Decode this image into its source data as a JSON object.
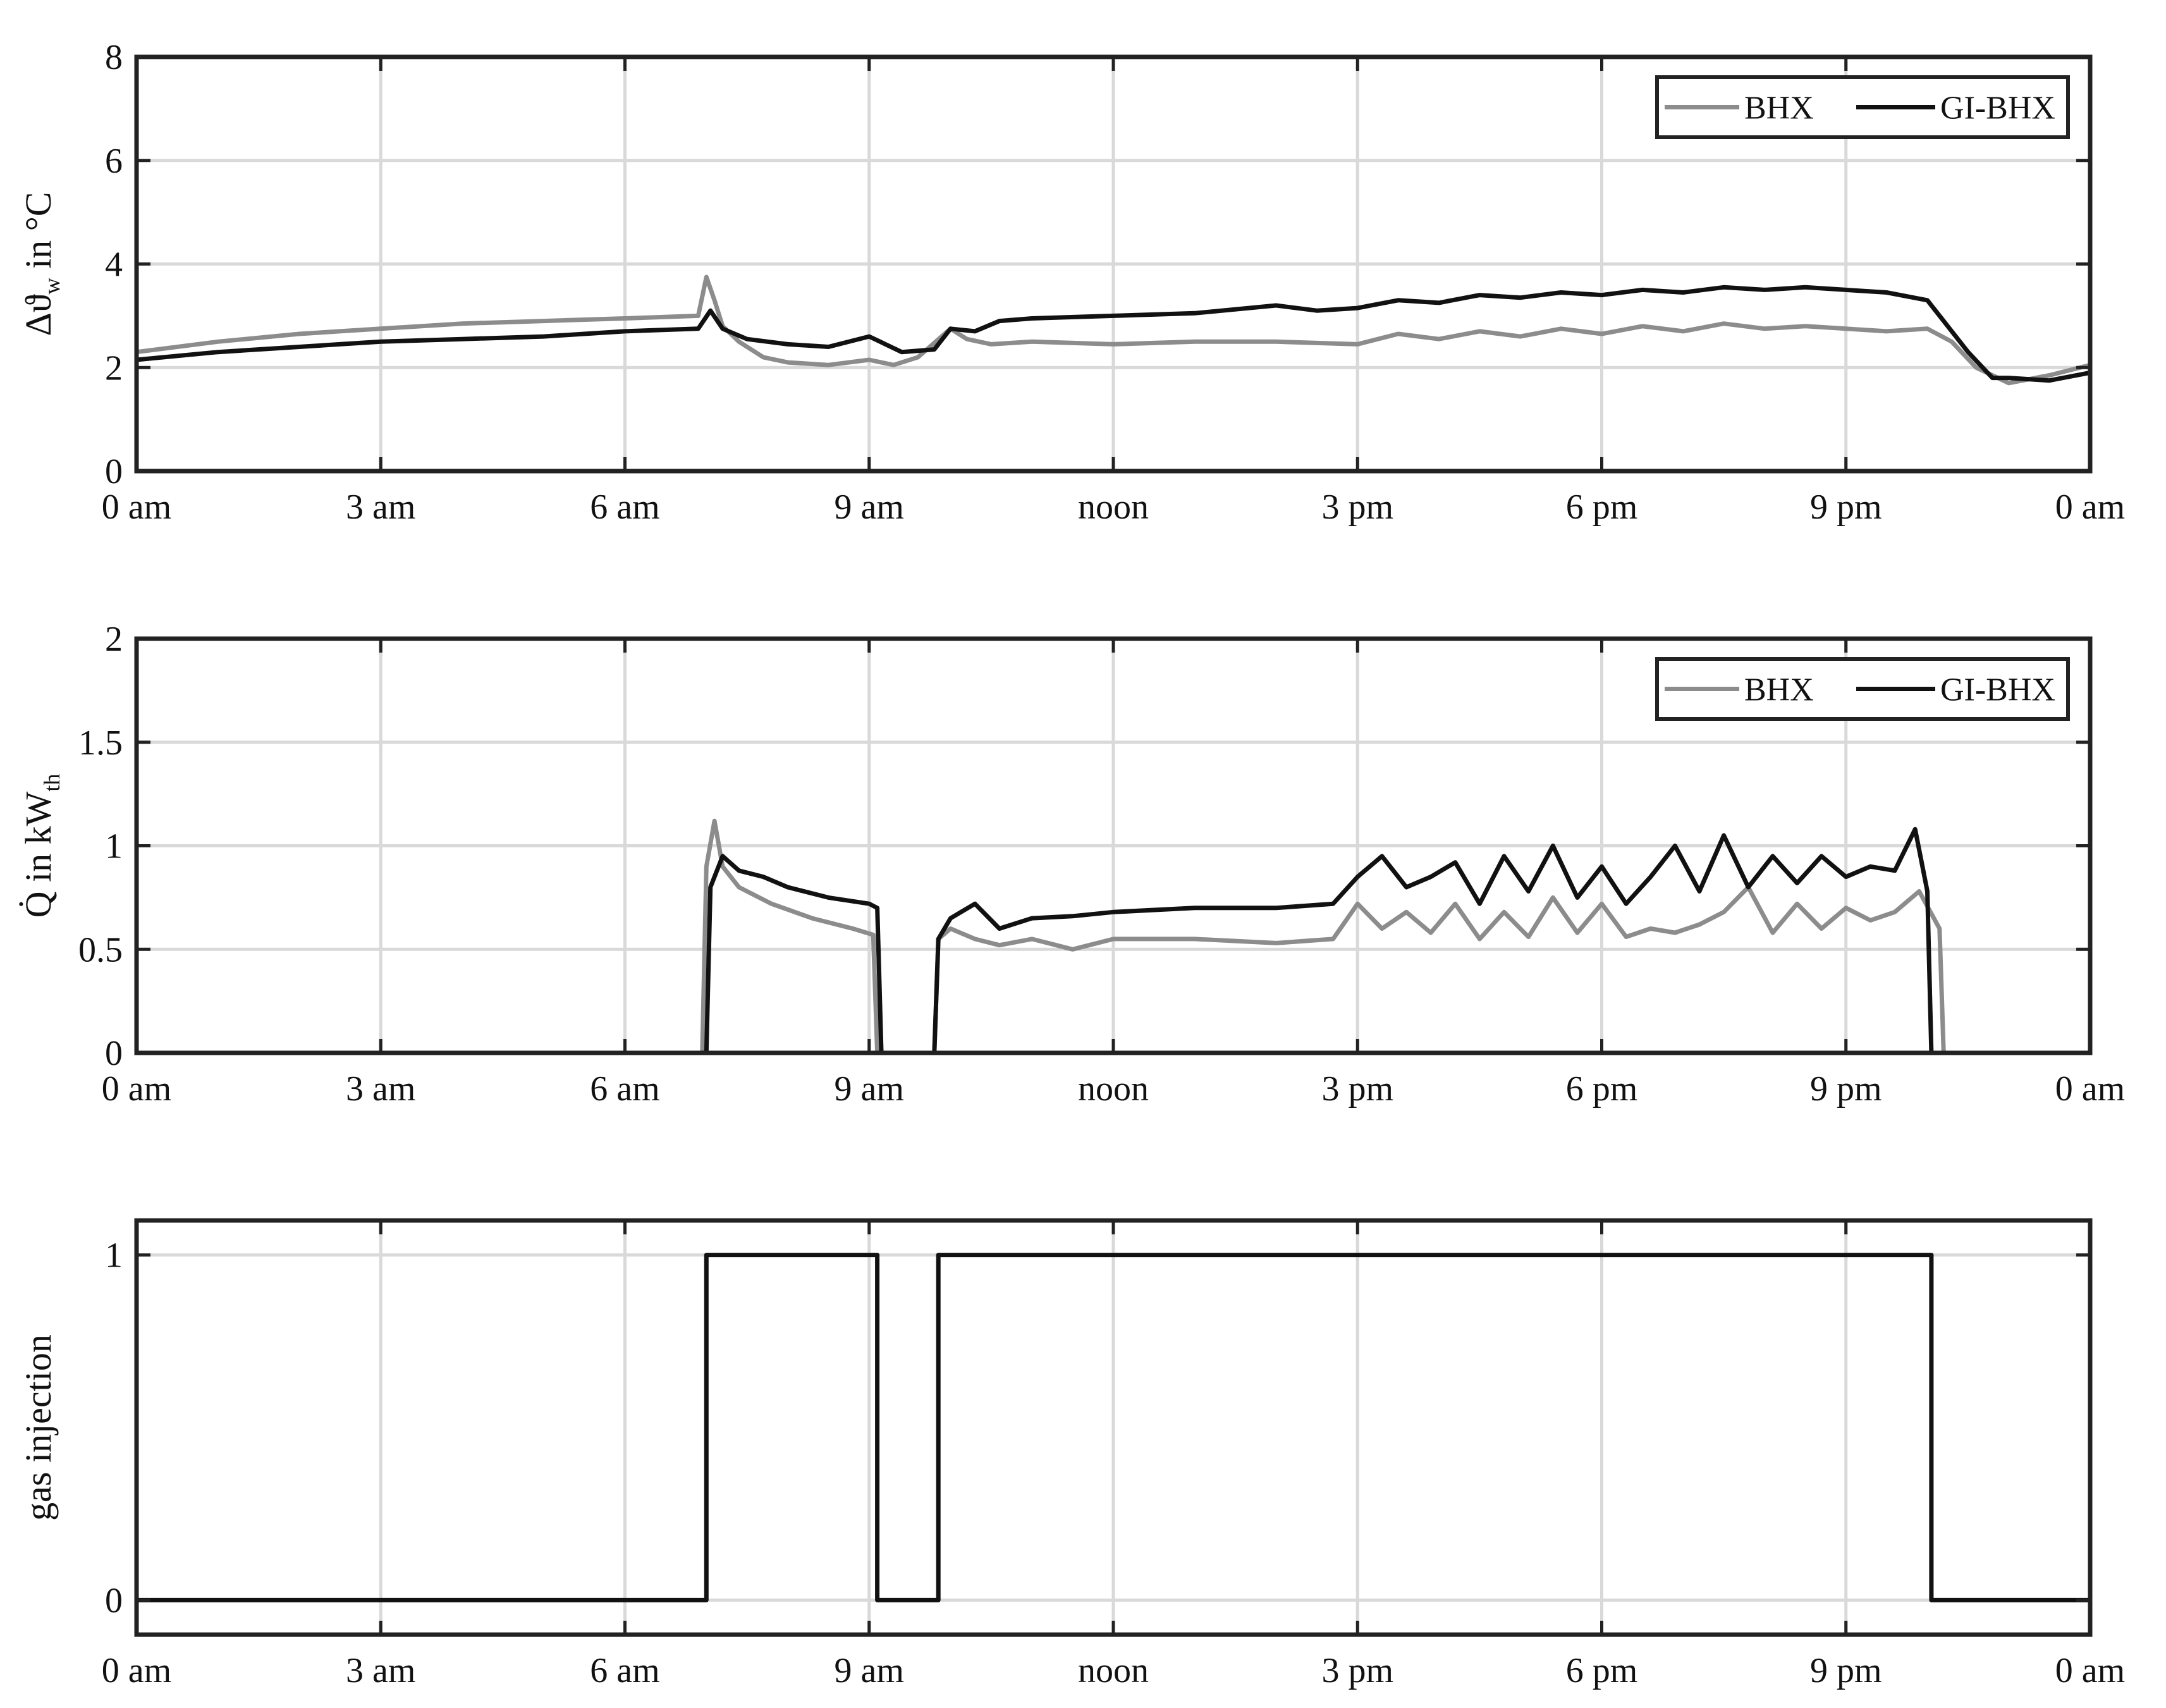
{
  "colors": {
    "bhx": "#8c8c8c",
    "gibhx": "#111111",
    "grid": "#d9d9d9",
    "axis": "#222222"
  },
  "chart_data": [
    {
      "type": "line",
      "ylabel": {
        "symbol": "Δϑ",
        "subscript": "w",
        "unit": " in °C"
      },
      "x_ticks": [
        "0 am",
        "3 am",
        "6 am",
        "9 am",
        "noon",
        "3 pm",
        "6 pm",
        "9 pm",
        "0 am"
      ],
      "x_tick_hours": [
        0,
        3,
        6,
        9,
        12,
        15,
        18,
        21,
        24
      ],
      "xlim": [
        0,
        24
      ],
      "ylim": [
        0,
        8
      ],
      "y_ticks": [
        0,
        2,
        4,
        6,
        8
      ],
      "y_tick_labels": [
        "0",
        "2",
        "4",
        "6",
        "8"
      ],
      "grid": true,
      "legend": {
        "placement": "top-right",
        "entries": [
          "BHX",
          "GI-BHX"
        ]
      },
      "series": [
        {
          "name": "BHX",
          "color": "#8c8c8c",
          "x": [
            0,
            1,
            2,
            3,
            4,
            5,
            6,
            6.9,
            7.0,
            7.1,
            7.2,
            7.4,
            7.7,
            8.0,
            8.5,
            9.0,
            9.3,
            9.6,
            10.0,
            10.2,
            10.5,
            11,
            12,
            13,
            14,
            15,
            15.5,
            16,
            16.5,
            17,
            17.5,
            18,
            18.5,
            19,
            19.5,
            20,
            20.5,
            21,
            21.5,
            22,
            22.3,
            22.6,
            23,
            23.5,
            24
          ],
          "y": [
            2.3,
            2.5,
            2.65,
            2.75,
            2.85,
            2.9,
            2.95,
            3.0,
            3.75,
            3.3,
            2.8,
            2.5,
            2.2,
            2.1,
            2.05,
            2.15,
            2.05,
            2.2,
            2.75,
            2.55,
            2.45,
            2.5,
            2.45,
            2.5,
            2.5,
            2.45,
            2.65,
            2.55,
            2.7,
            2.6,
            2.75,
            2.65,
            2.8,
            2.7,
            2.85,
            2.75,
            2.8,
            2.75,
            2.7,
            2.75,
            2.5,
            2.0,
            1.7,
            1.85,
            2.05
          ]
        },
        {
          "name": "GI-BHX",
          "color": "#111111",
          "x": [
            0,
            1,
            2,
            3,
            4,
            5,
            6,
            6.9,
            7.05,
            7.2,
            7.5,
            8.0,
            8.5,
            9.0,
            9.4,
            9.8,
            10.0,
            10.3,
            10.6,
            11,
            12,
            13,
            14,
            14.5,
            15,
            15.5,
            16,
            16.5,
            17,
            17.5,
            18,
            18.5,
            19,
            19.5,
            20,
            20.5,
            21,
            21.5,
            22,
            22.2,
            22.5,
            22.8,
            23,
            23.5,
            24
          ],
          "y": [
            2.15,
            2.3,
            2.4,
            2.5,
            2.55,
            2.6,
            2.7,
            2.75,
            3.1,
            2.75,
            2.55,
            2.45,
            2.4,
            2.6,
            2.3,
            2.35,
            2.75,
            2.7,
            2.9,
            2.95,
            3.0,
            3.05,
            3.2,
            3.1,
            3.15,
            3.3,
            3.25,
            3.4,
            3.35,
            3.45,
            3.4,
            3.5,
            3.45,
            3.55,
            3.5,
            3.55,
            3.5,
            3.45,
            3.3,
            2.9,
            2.3,
            1.8,
            1.8,
            1.75,
            1.9
          ]
        }
      ]
    },
    {
      "type": "line",
      "ylabel": {
        "symbol": "Q̇",
        "subscript": "th",
        "unit": " in kW"
      },
      "x_ticks": [
        "0 am",
        "3 am",
        "6 am",
        "9 am",
        "noon",
        "3 pm",
        "6 pm",
        "9 pm",
        "0 am"
      ],
      "x_tick_hours": [
        0,
        3,
        6,
        9,
        12,
        15,
        18,
        21,
        24
      ],
      "xlim": [
        0,
        24
      ],
      "ylim": [
        0,
        2
      ],
      "y_ticks": [
        0,
        0.5,
        1,
        1.5,
        2
      ],
      "y_tick_labels": [
        "0",
        "0.5",
        "1",
        "1.5",
        "2"
      ],
      "grid": true,
      "legend": {
        "placement": "top-right",
        "entries": [
          "BHX",
          "GI-BHX"
        ]
      },
      "series": [
        {
          "name": "BHX",
          "color": "#8c8c8c",
          "x": [
            0,
            6.95,
            7.0,
            7.1,
            7.2,
            7.4,
            7.8,
            8.3,
            8.8,
            9.05,
            9.1,
            9.8,
            9.85,
            10.0,
            10.3,
            10.6,
            11,
            11.5,
            12,
            13,
            14,
            14.7,
            15.0,
            15.3,
            15.6,
            15.9,
            16.2,
            16.5,
            16.8,
            17.1,
            17.4,
            17.7,
            18.0,
            18.3,
            18.6,
            18.9,
            19.2,
            19.5,
            19.8,
            20.1,
            20.4,
            20.7,
            21.0,
            21.3,
            21.6,
            21.9,
            22.15,
            22.2,
            24
          ],
          "y": [
            0,
            0,
            0.9,
            1.12,
            0.9,
            0.8,
            0.72,
            0.65,
            0.6,
            0.57,
            0,
            0,
            0.55,
            0.6,
            0.55,
            0.52,
            0.55,
            0.5,
            0.55,
            0.55,
            0.53,
            0.55,
            0.72,
            0.6,
            0.68,
            0.58,
            0.72,
            0.55,
            0.68,
            0.56,
            0.75,
            0.58,
            0.72,
            0.56,
            0.6,
            0.58,
            0.62,
            0.68,
            0.8,
            0.58,
            0.72,
            0.6,
            0.7,
            0.64,
            0.68,
            0.78,
            0.6,
            0,
            0
          ]
        },
        {
          "name": "GI-BHX",
          "color": "#111111",
          "x": [
            0,
            7.0,
            7.05,
            7.2,
            7.4,
            7.7,
            8.0,
            8.5,
            9.0,
            9.1,
            9.15,
            9.8,
            9.85,
            10.0,
            10.3,
            10.6,
            11,
            11.5,
            12,
            13,
            14,
            14.7,
            15.0,
            15.3,
            15.6,
            15.9,
            16.2,
            16.5,
            16.8,
            17.1,
            17.4,
            17.7,
            18.0,
            18.3,
            18.6,
            18.9,
            19.2,
            19.5,
            19.8,
            20.1,
            20.4,
            20.7,
            21.0,
            21.3,
            21.6,
            21.85,
            22.0,
            22.05,
            24
          ],
          "y": [
            0,
            0,
            0.8,
            0.95,
            0.88,
            0.85,
            0.8,
            0.75,
            0.72,
            0.7,
            0,
            0,
            0.55,
            0.65,
            0.72,
            0.6,
            0.65,
            0.66,
            0.68,
            0.7,
            0.7,
            0.72,
            0.85,
            0.95,
            0.8,
            0.85,
            0.92,
            0.72,
            0.95,
            0.78,
            1.0,
            0.75,
            0.9,
            0.72,
            0.85,
            1.0,
            0.78,
            1.05,
            0.8,
            0.95,
            0.82,
            0.95,
            0.85,
            0.9,
            0.88,
            1.08,
            0.78,
            0,
            0
          ]
        }
      ]
    },
    {
      "type": "line",
      "ylabel": {
        "text": "gas injection"
      },
      "x_ticks": [
        "0 am",
        "3 am",
        "6 am",
        "9 am",
        "noon",
        "3 pm",
        "6 pm",
        "9 pm",
        "0 am"
      ],
      "x_tick_hours": [
        0,
        3,
        6,
        9,
        12,
        15,
        18,
        21,
        24
      ],
      "xlim": [
        0,
        24
      ],
      "ylim": [
        -0.1,
        1.1
      ],
      "y_ticks": [
        0,
        1
      ],
      "y_tick_labels": [
        "0",
        "1"
      ],
      "grid": true,
      "series": [
        {
          "color": "#111111",
          "x": [
            0,
            7.0,
            7.0,
            9.1,
            9.1,
            9.85,
            9.85,
            22.05,
            22.05,
            24
          ],
          "y": [
            0,
            0,
            1,
            1,
            0,
            0,
            1,
            1,
            0,
            0
          ]
        }
      ]
    }
  ]
}
